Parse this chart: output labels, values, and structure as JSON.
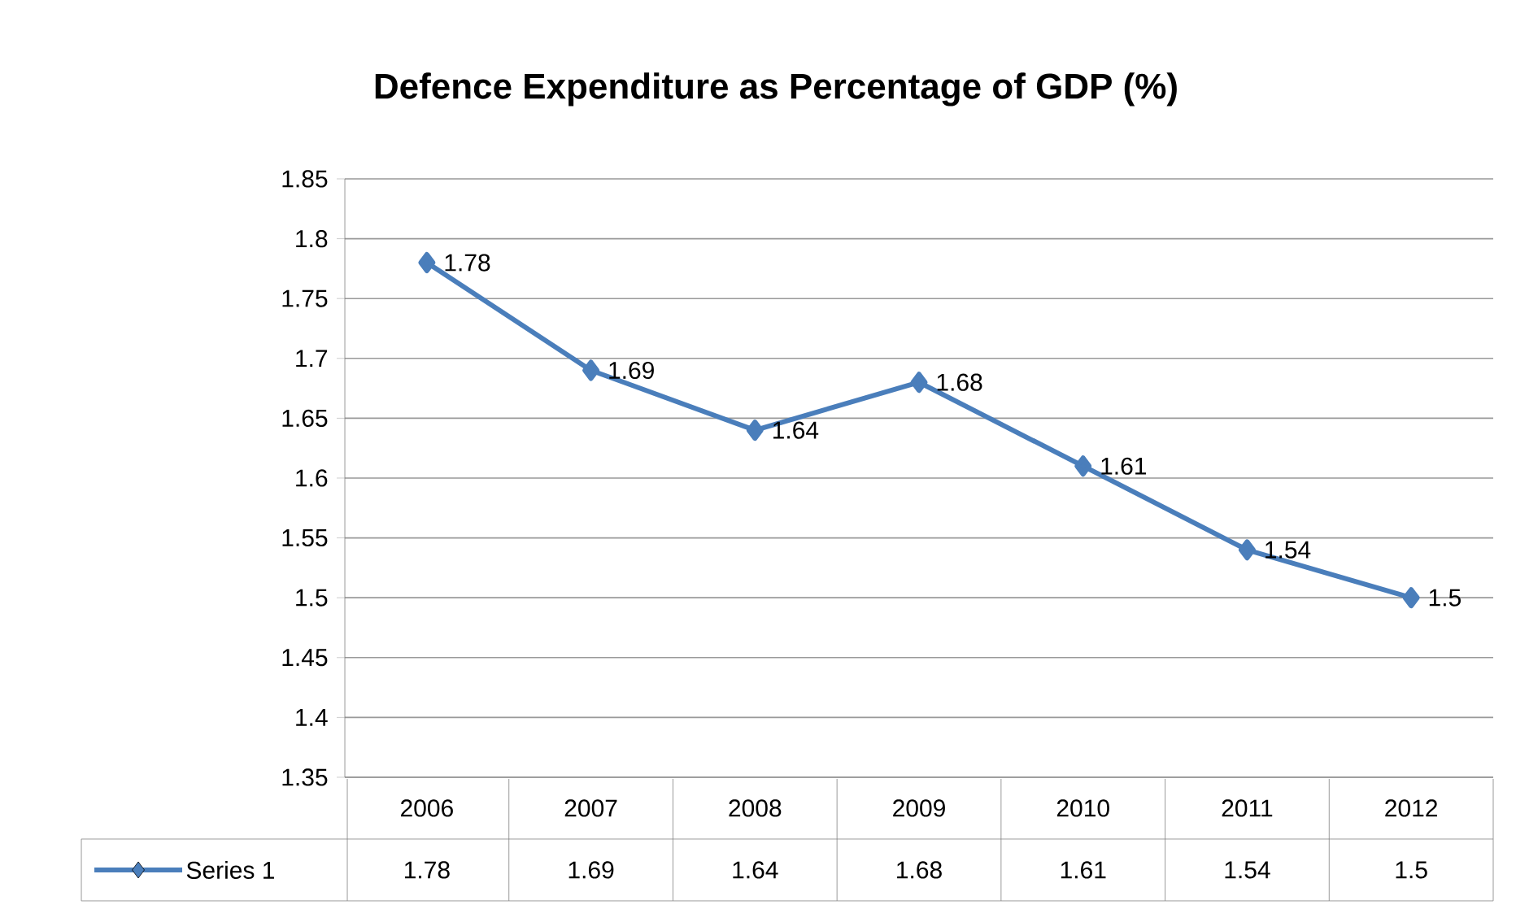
{
  "chart_data": {
    "type": "line",
    "title": "Defence Expenditure as Percentage of GDP (%)",
    "categories": [
      "2006",
      "2007",
      "2008",
      "2009",
      "2010",
      "2011",
      "2012"
    ],
    "series": [
      {
        "name": "Series 1",
        "color": "#4a7ebb",
        "values": [
          1.78,
          1.69,
          1.64,
          1.68,
          1.61,
          1.54,
          1.5
        ],
        "value_labels": [
          "1.78",
          "1.69",
          "1.64",
          "1.68",
          "1.61",
          "1.54",
          "1.5"
        ]
      }
    ],
    "ylim": [
      1.35,
      1.85
    ],
    "yticks": [
      1.35,
      1.4,
      1.45,
      1.5,
      1.55,
      1.6,
      1.65,
      1.7,
      1.75,
      1.8,
      1.85
    ],
    "grid": "y",
    "legend": "bottom",
    "marker": "diamond"
  }
}
